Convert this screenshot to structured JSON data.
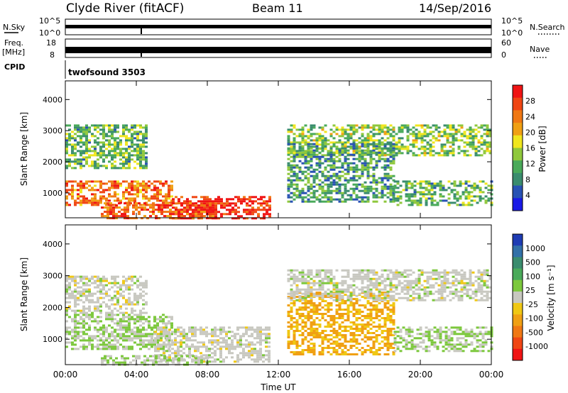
{
  "header": {
    "station": "Clyde River (fitACF)",
    "beam": "Beam 11",
    "date": "14/Sep/2016"
  },
  "nsky_panel": {
    "left_label": "N.Sky",
    "right_label": "N.Search",
    "left_ticks": [
      "10^5",
      "10^0"
    ],
    "right_ticks": [
      "10^5",
      "10^0"
    ]
  },
  "freq_panel": {
    "left_label_line1": "Freq.",
    "left_label_line2": "[MHz]",
    "right_label": "Nave",
    "left_ticks": [
      "18",
      "8"
    ],
    "right_ticks": [
      "60",
      "0"
    ]
  },
  "cpid_panel": {
    "label": "CPID",
    "program": "twofsound 3503"
  },
  "power_panel": {
    "ylabel": "Slant Range [km]",
    "colorbar_label": "Power [dB]",
    "colorbar_ticks": [
      "28",
      "24",
      "20",
      "16",
      "12",
      "8",
      "4"
    ],
    "colors": [
      "#1a1ae6",
      "#2852b4",
      "#3a8c6e",
      "#4aaa5a",
      "#8fc83c",
      "#f0e61e",
      "#f0a014",
      "#f07814",
      "#f04614",
      "#f01414"
    ]
  },
  "velocity_panel": {
    "ylabel": "Slant Range [km]",
    "colorbar_label": "Velocity [m s⁻¹]",
    "colorbar_ticks": [
      "1000",
      "500",
      "100",
      "25",
      "-25",
      "-100",
      "-500",
      "-1000"
    ],
    "colors": [
      "#1e3cb4",
      "#3270a8",
      "#3a8c6e",
      "#4aaa5a",
      "#7cc83c",
      "#c8c8c0",
      "#f0c814",
      "#f0a014",
      "#f07814",
      "#f04614",
      "#f01414"
    ]
  },
  "xaxis": {
    "label": "Time UT",
    "ticks": [
      "00:00",
      "04:00",
      "08:00",
      "12:00",
      "16:00",
      "20:00",
      "00:00"
    ]
  },
  "chart_data": {
    "type": "heatmap",
    "title": "Clyde River (fitACF)   Beam 11   14/Sep/2016",
    "xlabel": "Time UT",
    "ylabel": "Slant Range [km]",
    "xlim_hours": [
      0,
      24
    ],
    "ylim_km": [
      200,
      4600
    ],
    "yticks_km": [
      1000,
      2000,
      3000,
      4000
    ],
    "power_db_range": [
      0,
      32
    ],
    "velocity_ms_range": [
      -1000,
      1000
    ],
    "power_regions": [
      {
        "t": [
          0.0,
          6.0
        ],
        "r": [
          600,
          1400
        ],
        "db": 24
      },
      {
        "t": [
          6.0,
          11.5
        ],
        "r": [
          200,
          900
        ],
        "db": 30
      },
      {
        "t": [
          2.0,
          8.5
        ],
        "r": [
          200,
          700
        ],
        "db": 26
      },
      {
        "t": [
          0.0,
          4.5
        ],
        "r": [
          1800,
          3200
        ],
        "db": 12
      },
      {
        "t": [
          12.5,
          24.0
        ],
        "r": [
          2200,
          3200
        ],
        "db": 14
      },
      {
        "t": [
          12.5,
          18.5
        ],
        "r": [
          700,
          2600
        ],
        "db": 10
      },
      {
        "t": [
          18.5,
          24.0
        ],
        "r": [
          600,
          1400
        ],
        "db": 12
      }
    ],
    "velocity_regions": [
      {
        "t": [
          0.0,
          6.0
        ],
        "r": [
          700,
          1800
        ],
        "ms": 100
      },
      {
        "t": [
          0.0,
          4.5
        ],
        "r": [
          1800,
          3000
        ],
        "ms": 0
      },
      {
        "t": [
          5.0,
          11.5
        ],
        "r": [
          300,
          1400
        ],
        "ms": 0
      },
      {
        "t": [
          2.0,
          8.0
        ],
        "r": [
          200,
          500
        ],
        "ms": 100
      },
      {
        "t": [
          12.5,
          18.5
        ],
        "r": [
          500,
          2500
        ],
        "ms": -300
      },
      {
        "t": [
          12.5,
          24.0
        ],
        "r": [
          2200,
          3200
        ],
        "ms": 10
      },
      {
        "t": [
          18.5,
          24.0
        ],
        "r": [
          600,
          1400
        ],
        "ms": 100
      }
    ]
  }
}
